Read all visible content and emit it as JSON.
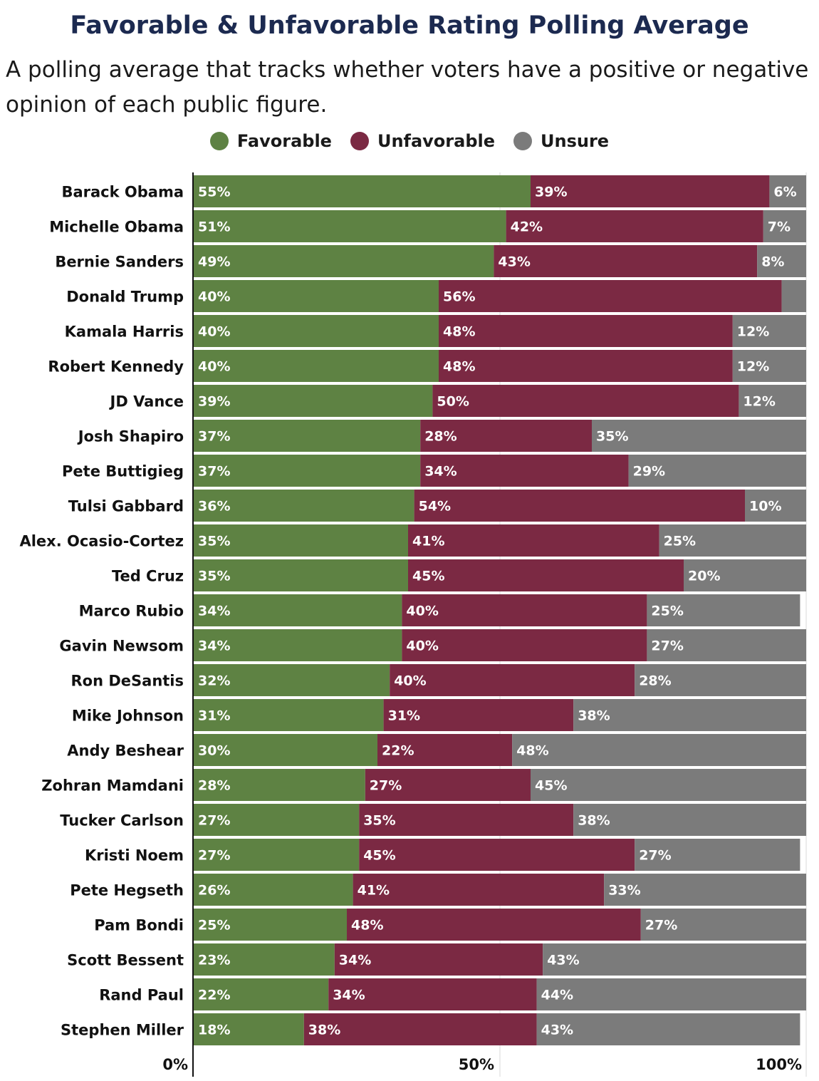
{
  "chart_data": {
    "type": "bar",
    "orientation": "horizontal",
    "stacked": true,
    "title": "Favorable & Unfavorable Rating Polling Average",
    "subtitle": "A polling average that tracks whether voters have a positive or negative opinion of each public figure.",
    "categories": [
      "Barack Obama",
      "Michelle Obama",
      "Bernie Sanders",
      "Donald Trump",
      "Kamala Harris",
      "Robert Kennedy",
      "JD Vance",
      "Josh Shapiro",
      "Pete Buttigieg",
      "Tulsi Gabbard",
      "Alex. Ocasio-Cortez",
      "Ted Cruz",
      "Marco Rubio",
      "Gavin Newsom",
      "Ron DeSantis",
      "Mike Johnson",
      "Andy Beshear",
      "Zohran Mamdani",
      "Tucker Carlson",
      "Kristi Noem",
      "Pete Hegseth",
      "Pam Bondi",
      "Scott Bessent",
      "Rand Paul",
      "Stephen Miller"
    ],
    "series": [
      {
        "name": "Favorable",
        "color": "#5e8243",
        "values": [
          55,
          51,
          49,
          40,
          40,
          40,
          39,
          37,
          37,
          36,
          35,
          35,
          34,
          34,
          32,
          31,
          30,
          28,
          27,
          27,
          26,
          25,
          23,
          22,
          18
        ],
        "labels": [
          "55%",
          "51%",
          "49%",
          "40%",
          "40%",
          "40%",
          "39%",
          "37%",
          "37%",
          "36%",
          "35%",
          "35%",
          "34%",
          "34%",
          "32%",
          "31%",
          "30%",
          "28%",
          "27%",
          "27%",
          "26%",
          "25%",
          "23%",
          "22%",
          "18%"
        ]
      },
      {
        "name": "Unfavorable",
        "color": "#7b2943",
        "values": [
          39,
          42,
          43,
          56,
          48,
          48,
          50,
          28,
          34,
          54,
          41,
          45,
          40,
          40,
          40,
          31,
          22,
          27,
          35,
          45,
          41,
          48,
          34,
          34,
          38
        ],
        "labels": [
          "39%",
          "42%",
          "43%",
          "56%",
          "48%",
          "48%",
          "50%",
          "28%",
          "34%",
          "54%",
          "41%",
          "45%",
          "40%",
          "40%",
          "40%",
          "31%",
          "22%",
          "27%",
          "35%",
          "45%",
          "41%",
          "48%",
          "34%",
          "34%",
          "38%"
        ]
      },
      {
        "name": "Unsure",
        "color": "#7b7b7b",
        "values": [
          6,
          7,
          8,
          4,
          12,
          12,
          12,
          35,
          29,
          10,
          25,
          20,
          25,
          27,
          28,
          38,
          48,
          45,
          38,
          27,
          33,
          27,
          43,
          44,
          43
        ],
        "labels": [
          "6%",
          "7%",
          "8%",
          "",
          "12%",
          "12%",
          "12%",
          "35%",
          "29%",
          "10%",
          "25%",
          "20%",
          "25%",
          "27%",
          "28%",
          "38%",
          "48%",
          "45%",
          "38%",
          "27%",
          "33%",
          "27%",
          "43%",
          "44%",
          "43%"
        ]
      }
    ],
    "xlim": [
      0,
      100
    ],
    "xticks": [
      0,
      50,
      100
    ],
    "xtick_labels": [
      "0%",
      "50%",
      "100%"
    ],
    "grid": true,
    "legend_position": "top-center"
  }
}
